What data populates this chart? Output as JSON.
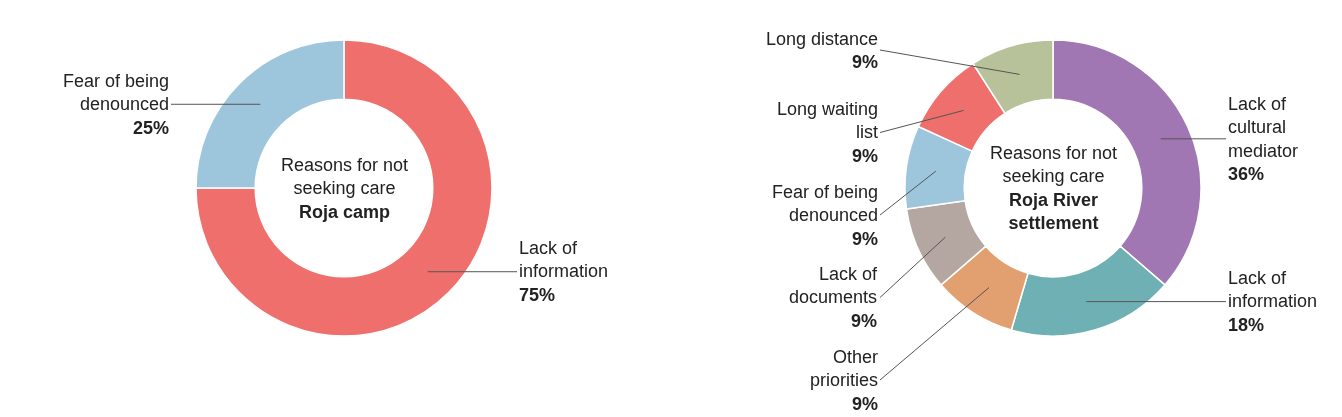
{
  "chart_data": [
    {
      "type": "donut",
      "title": "Reasons for not seeking care",
      "subtitle": "Roja camp",
      "categories": [
        "Lack of information",
        "Fear of being denounced"
      ],
      "values": [
        75,
        25
      ],
      "value_labels": [
        "75%",
        "25%"
      ],
      "colors": [
        "#ef6f6c",
        "#9dc6dc"
      ],
      "legend": false
    },
    {
      "type": "donut",
      "title": "Reasons for not seeking care",
      "subtitle": "Roja River settlement",
      "categories": [
        "Lack of cultural mediator",
        "Lack of information",
        "Other priorities",
        "Lack of documents",
        "Fear of being denounced",
        "Long waiting list",
        "Long distance"
      ],
      "values": [
        36,
        18,
        9,
        9,
        9,
        9,
        9
      ],
      "value_labels": [
        "36%",
        "18%",
        "9%",
        "9%",
        "9%",
        "9%",
        "9%"
      ],
      "colors": [
        "#a077b3",
        "#6fb0b5",
        "#e29f6f",
        "#b4a7a2",
        "#9dc6dc",
        "#ef6f6c",
        "#b8c29a"
      ],
      "legend": false
    }
  ]
}
